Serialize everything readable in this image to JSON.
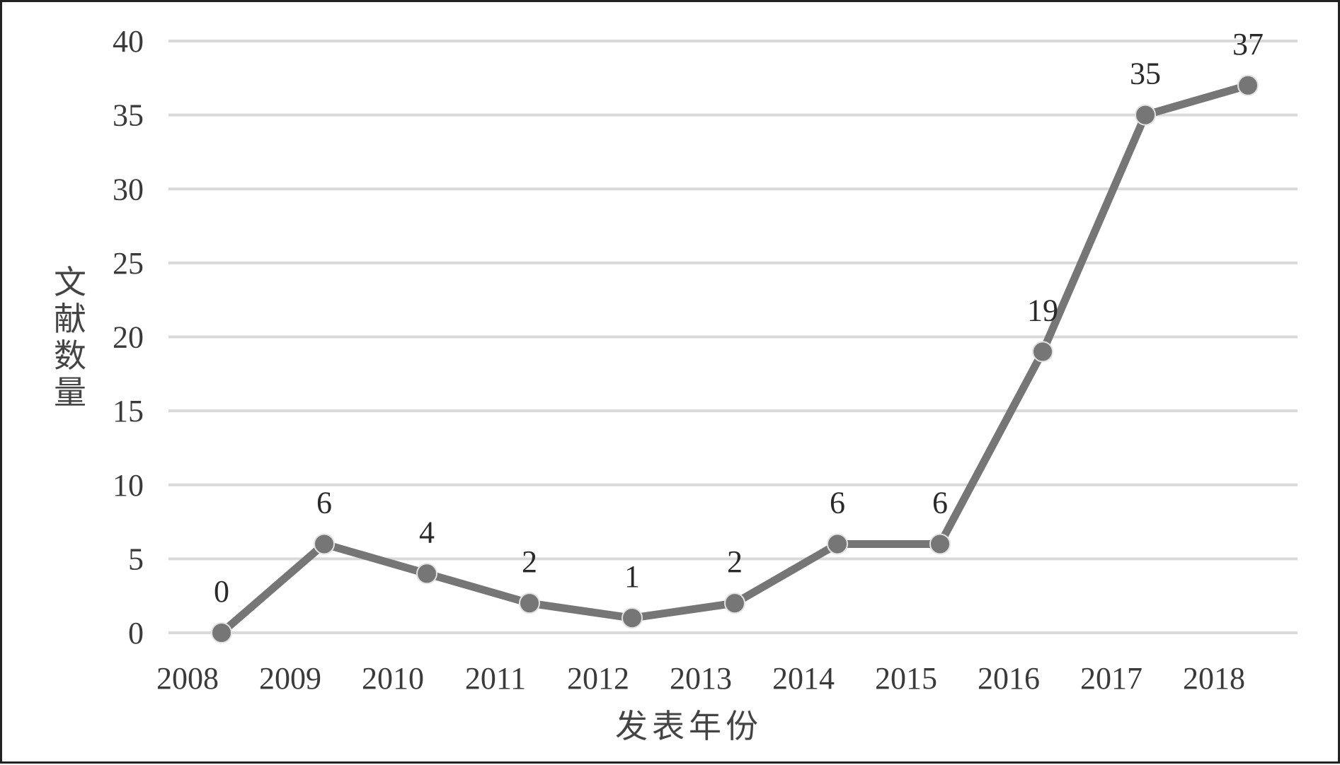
{
  "chart_data": {
    "type": "line",
    "title": "",
    "xlabel": "发表年份",
    "ylabel": "文献数量",
    "categories": [
      "2008",
      "2009",
      "2010",
      "2011",
      "2012",
      "2013",
      "2014",
      "2015",
      "2016",
      "2017",
      "2018"
    ],
    "series": [
      {
        "values": [
          0,
          6,
          4,
          2,
          1,
          2,
          6,
          6,
          19,
          35,
          37
        ],
        "data_labels": [
          "0",
          "6",
          "4",
          "2",
          "1",
          "2",
          "6",
          "6",
          "19",
          "35",
          "37"
        ],
        "color": "#767676"
      }
    ],
    "ylim": [
      0,
      40
    ],
    "yticks": [
      "0",
      "5",
      "10",
      "15",
      "20",
      "25",
      "30",
      "35",
      "40"
    ],
    "grid": true,
    "gridline_color": "#d9d9d9",
    "marker": "circle",
    "legend": "none"
  }
}
